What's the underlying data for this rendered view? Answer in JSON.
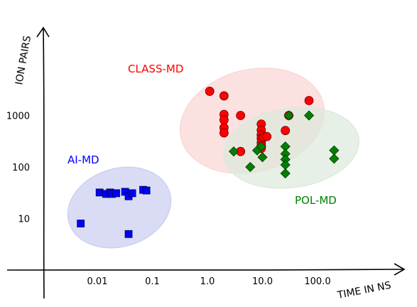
{
  "chart_data": {
    "type": "scatter",
    "title": "",
    "xlabel": "TIME IN NS",
    "ylabel": "ION PAIRS",
    "x_scale": "log",
    "y_scale": "log",
    "x_ticks": [
      {
        "value": 0.01,
        "label": "0.01"
      },
      {
        "value": 0.1,
        "label": "0.1"
      },
      {
        "value": 1,
        "label": "1.0"
      },
      {
        "value": 10,
        "label": "10.0"
      },
      {
        "value": 100,
        "label": "100.0"
      }
    ],
    "y_ticks": [
      {
        "value": 10,
        "label": "10"
      },
      {
        "value": 100,
        "label": "100"
      },
      {
        "value": 1000,
        "label": "1000"
      }
    ],
    "grid": false,
    "legend": "none",
    "series": [
      {
        "name": "AI-MD",
        "marker": "square",
        "color": "#0000ff",
        "ellipse_color": "#c9cdf0",
        "points": [
          [
            0.005,
            8
          ],
          [
            0.011,
            32
          ],
          [
            0.0145,
            30
          ],
          [
            0.017,
            32
          ],
          [
            0.0185,
            30
          ],
          [
            0.022,
            31
          ],
          [
            0.032,
            33
          ],
          [
            0.037,
            27
          ],
          [
            0.043,
            31
          ],
          [
            0.068,
            36
          ],
          [
            0.078,
            35
          ],
          [
            0.037,
            5
          ]
        ]
      },
      {
        "name": "CLASS-MD",
        "marker": "circle",
        "color": "#ff0000",
        "ellipse_color": "#fbd4d4",
        "points": [
          [
            1.1,
            2950
          ],
          [
            2,
            2400
          ],
          [
            2,
            1050
          ],
          [
            2,
            820
          ],
          [
            2,
            580
          ],
          [
            2,
            460
          ],
          [
            4,
            1000
          ],
          [
            4,
            200
          ],
          [
            9.5,
            680
          ],
          [
            9.5,
            520
          ],
          [
            9.5,
            420
          ],
          [
            9.5,
            360
          ],
          [
            9.5,
            300
          ],
          [
            9.5,
            260
          ],
          [
            9.5,
            230
          ],
          [
            10.5,
            380
          ],
          [
            12,
            390
          ],
          [
            30,
            1000
          ],
          [
            26,
            510
          ],
          [
            70,
            1950
          ]
        ]
      },
      {
        "name": "POL-MD",
        "marker": "diamond",
        "color": "#008000",
        "ellipse_color": "#dbeadb",
        "points": [
          [
            3,
            200
          ],
          [
            6,
            100
          ],
          [
            8,
            210
          ],
          [
            9.5,
            250
          ],
          [
            10,
            155
          ],
          [
            30,
            1000
          ],
          [
            26,
            250
          ],
          [
            26,
            180
          ],
          [
            26,
            140
          ],
          [
            26,
            110
          ],
          [
            26,
            75
          ],
          [
            70,
            1000
          ],
          [
            200,
            210
          ],
          [
            200,
            145
          ]
        ]
      }
    ]
  }
}
